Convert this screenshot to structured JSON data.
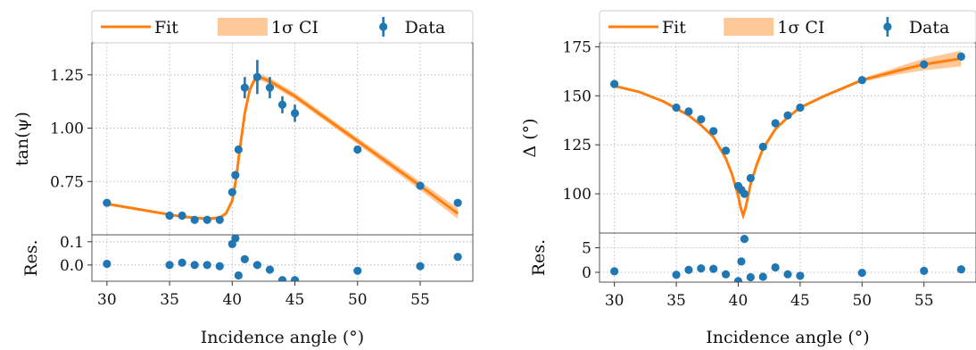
{
  "chart_data": [
    {
      "type": "scatter",
      "legend": {
        "fit": "Fit",
        "ci": "1σ CI",
        "data": "Data"
      },
      "xlabel": "Incidence angle (°)",
      "ylabel": "tan(ψ)",
      "res_label": "Res.",
      "xlim": [
        28.8,
        59.2
      ],
      "ylim": [
        0.5,
        1.4
      ],
      "res_ylim": [
        -0.07,
        0.13
      ],
      "xticks": [
        30,
        35,
        40,
        45,
        50,
        55
      ],
      "yticks": [
        0.75,
        1.0,
        1.25
      ],
      "ytick_labels": [
        "0.75",
        "1.00",
        "1.25"
      ],
      "res_yticks": [
        0.0,
        0.1
      ],
      "res_ytick_labels": [
        "0.0",
        "0.1"
      ],
      "data": {
        "x": [
          30,
          35,
          36,
          37,
          38,
          39,
          40,
          40.25,
          40.5,
          41,
          42,
          43,
          44,
          45,
          50,
          55,
          58
        ],
        "y": [
          0.65,
          0.59,
          0.59,
          0.57,
          0.57,
          0.57,
          0.7,
          0.78,
          0.9,
          1.19,
          1.24,
          1.19,
          1.11,
          1.07,
          0.9,
          0.73,
          0.65
        ],
        "err": [
          0,
          0,
          0,
          0,
          0,
          0,
          0,
          0,
          0,
          0.05,
          0.08,
          0.05,
          0.04,
          0.04,
          0,
          0,
          0
        ]
      },
      "fit": {
        "x": [
          30,
          32,
          34,
          36,
          38,
          39,
          39.5,
          40,
          40.3,
          40.6,
          41,
          41.4,
          41.8,
          42.2,
          43,
          45,
          50,
          55,
          58
        ],
        "y": [
          0.645,
          0.625,
          0.605,
          0.585,
          0.575,
          0.58,
          0.6,
          0.66,
          0.76,
          0.9,
          1.07,
          1.18,
          1.23,
          1.24,
          1.22,
          1.15,
          0.94,
          0.73,
          0.6
        ],
        "ci": [
          0.006,
          0.006,
          0.006,
          0.006,
          0.007,
          0.008,
          0.01,
          0.015,
          0.02,
          0.02,
          0.02,
          0.018,
          0.015,
          0.015,
          0.015,
          0.015,
          0.015,
          0.02,
          0.025
        ]
      },
      "residuals": {
        "x": [
          30,
          35,
          36,
          37,
          38,
          39,
          40,
          40.25,
          40.5,
          41,
          42,
          43,
          44,
          45,
          50,
          55,
          58
        ],
        "y": [
          0.005,
          0.0,
          0.01,
          0.0,
          0.0,
          -0.005,
          0.09,
          0.115,
          -0.045,
          0.025,
          0.0,
          -0.02,
          -0.065,
          -0.065,
          -0.025,
          -0.005,
          0.035
        ]
      }
    },
    {
      "type": "scatter",
      "legend": {
        "fit": "Fit",
        "ci": "1σ CI",
        "data": "Data"
      },
      "xlabel": "Incidence angle (°)",
      "ylabel": "Δ (°)",
      "res_label": "Res.",
      "xlim": [
        28.8,
        59.2
      ],
      "ylim": [
        80,
        177
      ],
      "res_ylim": [
        -2,
        8
      ],
      "xticks": [
        30,
        35,
        40,
        45,
        50,
        55
      ],
      "yticks": [
        100,
        125,
        150,
        175
      ],
      "ytick_labels": [
        "100",
        "125",
        "150",
        "175"
      ],
      "res_yticks": [
        0,
        5
      ],
      "res_ytick_labels": [
        "0",
        "5"
      ],
      "data": {
        "x": [
          30,
          35,
          36,
          37,
          38,
          39,
          40,
          40.25,
          40.5,
          41,
          42,
          43,
          44,
          45,
          50,
          55,
          58
        ],
        "y": [
          156,
          144,
          142,
          138,
          132,
          122,
          104,
          102,
          100,
          108,
          124,
          136,
          140,
          144,
          158,
          166,
          170
        ],
        "err": [
          0,
          0,
          0,
          0,
          0,
          0,
          0,
          0,
          0,
          0,
          0,
          0,
          0,
          0,
          0,
          0,
          0
        ]
      },
      "fit": {
        "x": [
          30,
          32,
          34,
          36,
          37,
          38,
          39,
          39.5,
          40,
          40.2,
          40.4,
          40.6,
          40.8,
          41,
          41.5,
          42,
          43,
          44,
          45,
          47,
          50,
          53,
          55,
          58
        ],
        "y": [
          155,
          152,
          147,
          140,
          135,
          129,
          118,
          110,
          99,
          93,
          89,
          93,
          99,
          105,
          115,
          123,
          133,
          139,
          144,
          150,
          158,
          163,
          166,
          169
        ],
        "ci": [
          0.5,
          0.5,
          0.5,
          0.5,
          0.5,
          0.5,
          0.6,
          0.8,
          1,
          1,
          1,
          1,
          1,
          0.8,
          0.6,
          0.5,
          0.5,
          0.5,
          0.5,
          0.6,
          0.8,
          2,
          3,
          4
        ]
      },
      "residuals": {
        "x": [
          30,
          35,
          36,
          37,
          38,
          39,
          40,
          40.25,
          40.5,
          41,
          42,
          43,
          44,
          45,
          50,
          55,
          58
        ],
        "y": [
          0.2,
          -0.5,
          0.5,
          0.8,
          0.7,
          -0.4,
          -1.8,
          2.2,
          6.8,
          -1.0,
          -0.9,
          1.0,
          -0.4,
          -0.7,
          -0.1,
          0.3,
          0.6
        ]
      }
    }
  ]
}
